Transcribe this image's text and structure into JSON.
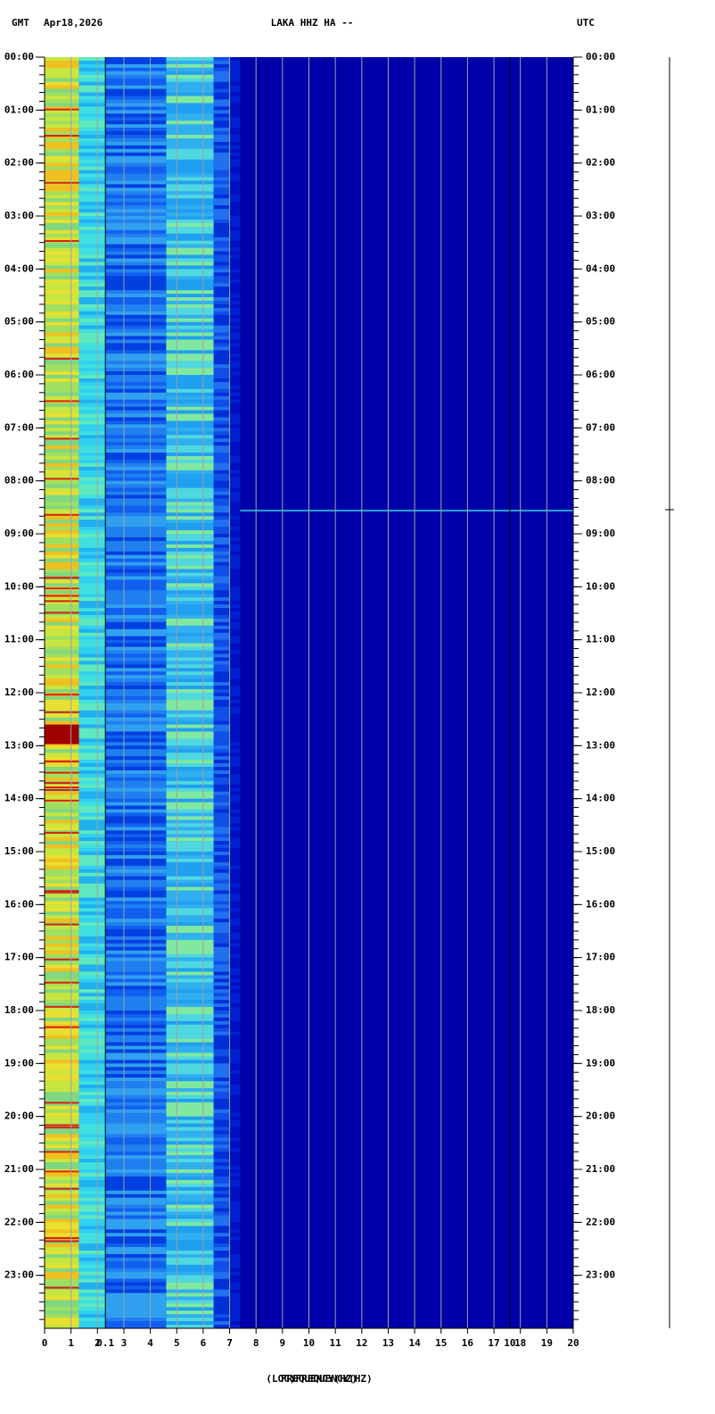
{
  "chart_data": {
    "type": "spectrogram",
    "timezone": "GMT",
    "date": "Apr18,2026",
    "title": "LAKA HHZ HA --",
    "timezone_right": "UTC",
    "xlabel": "FREQUENCY(HZ)",
    "xlabel_log": "(LOG)FREQUENCY(HZ)",
    "xlim": [
      0,
      20
    ],
    "xticks": [
      0,
      1,
      2,
      3,
      4,
      5,
      6,
      7,
      8,
      9,
      10,
      11,
      12,
      13,
      14,
      15,
      16,
      17,
      18,
      19,
      20
    ],
    "log_xticks": [
      {
        "value": 2.3,
        "label": "0.1"
      },
      {
        "value": 17.6,
        "label": "10"
      }
    ],
    "ylim": [
      0,
      24
    ],
    "yticks": [
      {
        "value": 0,
        "label": "00:00"
      },
      {
        "value": 1,
        "label": "01:00"
      },
      {
        "value": 2,
        "label": "02:00"
      },
      {
        "value": 3,
        "label": "03:00"
      },
      {
        "value": 4,
        "label": "04:00"
      },
      {
        "value": 5,
        "label": "05:00"
      },
      {
        "value": 6,
        "label": "06:00"
      },
      {
        "value": 7,
        "label": "07:00"
      },
      {
        "value": 8,
        "label": "08:00"
      },
      {
        "value": 9,
        "label": "09:00"
      },
      {
        "value": 10,
        "label": "10:00"
      },
      {
        "value": 11,
        "label": "11:00"
      },
      {
        "value": 12,
        "label": "12:00"
      },
      {
        "value": 13,
        "label": "13:00"
      },
      {
        "value": 14,
        "label": "14:00"
      },
      {
        "value": 15,
        "label": "15:00"
      },
      {
        "value": 16,
        "label": "16:00"
      },
      {
        "value": 17,
        "label": "17:00"
      },
      {
        "value": 18,
        "label": "18:00"
      },
      {
        "value": 19,
        "label": "19:00"
      },
      {
        "value": 20,
        "label": "20:00"
      },
      {
        "value": 21,
        "label": "21:00"
      },
      {
        "value": 22,
        "label": "22:00"
      },
      {
        "value": 23,
        "label": "23:00"
      }
    ]
  }
}
